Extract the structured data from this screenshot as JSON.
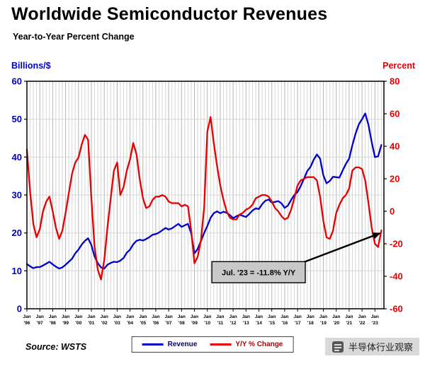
{
  "title": "Worldwide Semiconductor Revenues",
  "subtitle": "Year-to-Year Percent Change",
  "left_axis_title": "Billions/$",
  "right_axis_title": "Percent",
  "source": "Source: WSTS",
  "legend": {
    "revenue": "Revenue",
    "yoy": "Y/Y % Change"
  },
  "annotation": {
    "text": "Jul. '23 = -11.8% Y/Y"
  },
  "watermark": "半导体行业观察",
  "colors": {
    "revenue": "#0000cc",
    "yoy": "#e60000",
    "grid": "#d6d6d6",
    "grid_year": "#b5b5b5",
    "annotation_bg": "#c8c8c8",
    "legend_revenue_text": "#00007a",
    "legend_yoy_text": "#b00000"
  },
  "chart_data": {
    "type": "line",
    "title": "Worldwide Semiconductor Revenues",
    "subtitle": "Year-to-Year Percent Change",
    "x_start": 1996.0,
    "x_step": 0.25,
    "x_end": 2023.5,
    "x_axis": {
      "min": 1996.0,
      "max": 2023.7
    },
    "x_tick_month": "Jan",
    "x_tick_years": [
      "'96",
      "'97",
      "'98",
      "'99",
      "'00",
      "'01",
      "'02",
      "'03",
      "'04",
      "'05",
      "'06",
      "'07",
      "'08",
      "'09",
      "'10",
      "'11",
      "'12",
      "'13",
      "'14",
      "'15",
      "'16",
      "'17",
      "'18",
      "'19",
      "'20",
      "'21",
      "'22",
      "'23"
    ],
    "left_axis": {
      "label": "Billions/$",
      "min": 0,
      "max": 60,
      "ticks": [
        0,
        10,
        20,
        30,
        40,
        50,
        60
      ]
    },
    "right_axis": {
      "label": "Percent",
      "min": -60,
      "max": 80,
      "ticks": [
        80,
        60,
        40,
        20,
        0,
        -20,
        -40,
        -60
      ]
    },
    "series": [
      {
        "key": "revenue",
        "name": "Revenue",
        "axis": "left",
        "color": "#0000cc",
        "values": [
          11.8,
          11.2,
          10.7,
          11.0,
          11.0,
          11.4,
          11.9,
          12.4,
          11.7,
          11.1,
          10.6,
          10.9,
          11.6,
          12.4,
          13.2,
          14.6,
          15.6,
          16.9,
          17.9,
          18.6,
          16.8,
          13.8,
          12.0,
          10.9,
          10.6,
          11.6,
          12.1,
          12.4,
          12.3,
          12.7,
          13.4,
          14.8,
          15.6,
          17.0,
          17.9,
          18.2,
          18.0,
          18.4,
          18.9,
          19.5,
          19.7,
          20.1,
          20.7,
          21.3,
          20.9,
          21.2,
          21.8,
          22.4,
          21.6,
          22.0,
          22.4,
          19.8,
          14.6,
          15.8,
          17.8,
          20.0,
          21.8,
          24.0,
          25.2,
          25.7,
          25.2,
          25.6,
          25.3,
          24.7,
          23.9,
          24.4,
          24.8,
          24.5,
          24.2,
          25.0,
          25.9,
          26.5,
          26.3,
          27.6,
          28.5,
          28.8,
          28.0,
          28.2,
          28.4,
          27.8,
          26.6,
          27.2,
          28.7,
          30.0,
          30.8,
          32.4,
          34.3,
          36.3,
          37.4,
          39.3,
          40.7,
          39.6,
          35.2,
          33.1,
          33.7,
          34.8,
          34.7,
          34.6,
          36.5,
          38.2,
          39.6,
          43.1,
          46.2,
          48.6,
          50.0,
          51.5,
          48.5,
          44.0,
          40.0,
          40.2,
          43.2
        ]
      },
      {
        "key": "yoy",
        "name": "Y/Y % Change",
        "axis": "right",
        "color": "#e60000",
        "values": [
          38,
          12,
          -8,
          -16,
          -11,
          0,
          6,
          9,
          0,
          -10,
          -17,
          -12,
          -1,
          11,
          23,
          30,
          33,
          41,
          47,
          44,
          8,
          -22,
          -36,
          -42,
          -30,
          -10,
          8,
          25,
          30,
          10,
          15,
          25,
          32,
          42,
          35,
          20,
          8,
          2,
          3,
          7,
          9,
          9,
          10,
          9,
          6,
          5,
          5,
          5,
          3,
          4,
          3,
          -12,
          -32,
          -28,
          -18,
          2,
          49,
          58,
          42,
          28,
          16,
          7,
          0,
          -4,
          -5,
          -5,
          -2,
          -1,
          1,
          2,
          4,
          8,
          9,
          10,
          10,
          9,
          6,
          2,
          0,
          -3,
          -5,
          -4,
          1,
          8,
          16,
          19,
          20,
          21,
          21,
          21,
          19,
          9,
          -6,
          -16,
          -17,
          -12,
          -1,
          4,
          8,
          10,
          14,
          25,
          27,
          27,
          26,
          19,
          5,
          -10,
          -20,
          -22,
          -11.8
        ]
      }
    ],
    "annotation": {
      "text": "Jul. '23 = -11.8% Y/Y",
      "points_to": {
        "x": 2023.5,
        "y_right": -11.8
      }
    },
    "legend_position": "bottom-center",
    "grid": "on"
  }
}
